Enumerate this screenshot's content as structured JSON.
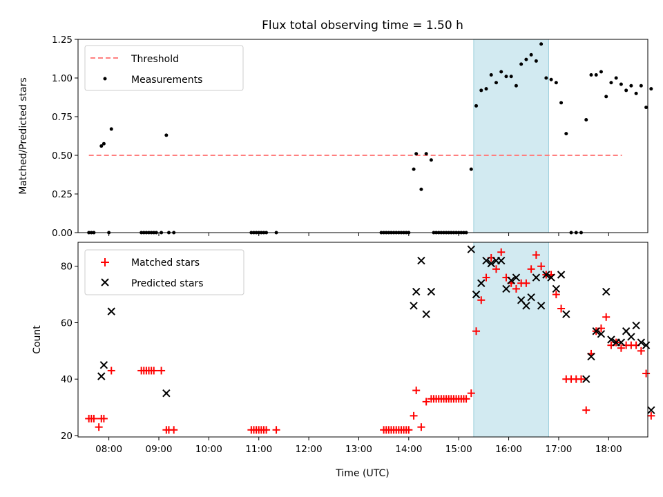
{
  "chart_data": [
    {
      "type": "scatter",
      "title": "Flux total observing time = 1.50 h",
      "xlabel": "",
      "ylabel": "Matched/Predicted stars",
      "xlim": [
        "07:23",
        "18:47"
      ],
      "ylim": [
        0,
        1.25
      ],
      "yticks": [
        0,
        0.25,
        0.5,
        0.75,
        1.0,
        1.25
      ],
      "ytick_labels": [
        "0.00",
        "0.25",
        "0.50",
        "0.75",
        "1.00",
        "1.25"
      ],
      "threshold": {
        "name": "Threshold",
        "y": 0.5,
        "x_range": [
          "07:36",
          "18:16"
        ],
        "color": "#ff7f7f"
      },
      "highlight_span": [
        "15:18",
        "16:48"
      ],
      "legend": {
        "position": "top-left",
        "entries": [
          "Threshold",
          "Measurements"
        ]
      },
      "series": [
        {
          "name": "Measurements",
          "color": "#000000",
          "marker": "dot",
          "points": [
            [
              "07:36",
              0
            ],
            [
              "07:39",
              0
            ],
            [
              "07:42",
              0
            ],
            [
              "07:51",
              0.56
            ],
            [
              "07:54",
              0.575
            ],
            [
              "08:00",
              0
            ],
            [
              "08:03",
              0.67
            ],
            [
              "08:39",
              0
            ],
            [
              "08:42",
              0
            ],
            [
              "08:45",
              0
            ],
            [
              "08:48",
              0
            ],
            [
              "08:51",
              0
            ],
            [
              "08:54",
              0
            ],
            [
              "08:57",
              0
            ],
            [
              "09:03",
              0
            ],
            [
              "09:09",
              0.63
            ],
            [
              "09:12",
              0
            ],
            [
              "09:18",
              0
            ],
            [
              "10:51",
              0
            ],
            [
              "10:54",
              0
            ],
            [
              "10:57",
              0
            ],
            [
              "11:00",
              0
            ],
            [
              "11:03",
              0
            ],
            [
              "11:06",
              0
            ],
            [
              "11:09",
              0
            ],
            [
              "11:21",
              0
            ],
            [
              "13:27",
              0
            ],
            [
              "13:30",
              0
            ],
            [
              "13:33",
              0
            ],
            [
              "13:36",
              0
            ],
            [
              "13:39",
              0
            ],
            [
              "13:42",
              0
            ],
            [
              "13:45",
              0
            ],
            [
              "13:48",
              0
            ],
            [
              "13:51",
              0
            ],
            [
              "13:54",
              0
            ],
            [
              "13:57",
              0
            ],
            [
              "14:00",
              0
            ],
            [
              "14:06",
              0.41
            ],
            [
              "14:09",
              0.51
            ],
            [
              "14:15",
              0.28
            ],
            [
              "14:21",
              0.51
            ],
            [
              "14:27",
              0.47
            ],
            [
              "14:30",
              0
            ],
            [
              "14:33",
              0
            ],
            [
              "14:36",
              0
            ],
            [
              "14:39",
              0
            ],
            [
              "14:42",
              0
            ],
            [
              "14:45",
              0
            ],
            [
              "14:48",
              0
            ],
            [
              "14:51",
              0
            ],
            [
              "14:54",
              0
            ],
            [
              "14:57",
              0
            ],
            [
              "15:00",
              0
            ],
            [
              "15:03",
              0
            ],
            [
              "15:06",
              0
            ],
            [
              "15:09",
              0
            ],
            [
              "15:15",
              0.41
            ],
            [
              "15:21",
              0.82
            ],
            [
              "15:27",
              0.92
            ],
            [
              "15:33",
              0.93
            ],
            [
              "15:39",
              1.02
            ],
            [
              "15:45",
              0.97
            ],
            [
              "15:51",
              1.04
            ],
            [
              "15:57",
              1.01
            ],
            [
              "16:03",
              1.01
            ],
            [
              "16:09",
              0.95
            ],
            [
              "16:15",
              1.09
            ],
            [
              "16:21",
              1.12
            ],
            [
              "16:27",
              1.15
            ],
            [
              "16:33",
              1.11
            ],
            [
              "16:39",
              1.22
            ],
            [
              "16:45",
              1.0
            ],
            [
              "16:51",
              0.99
            ],
            [
              "16:57",
              0.97
            ],
            [
              "17:03",
              0.84
            ],
            [
              "17:09",
              0.64
            ],
            [
              "17:15",
              0
            ],
            [
              "17:21",
              0
            ],
            [
              "17:27",
              0
            ],
            [
              "17:33",
              0.73
            ],
            [
              "17:39",
              1.02
            ],
            [
              "17:45",
              1.02
            ],
            [
              "17:51",
              1.04
            ],
            [
              "17:57",
              0.88
            ],
            [
              "18:03",
              0.97
            ],
            [
              "18:09",
              1.0
            ],
            [
              "18:15",
              0.96
            ],
            [
              "18:21",
              0.92
            ],
            [
              "18:27",
              0.95
            ],
            [
              "18:33",
              0.9
            ],
            [
              "18:39",
              0.95
            ],
            [
              "18:45",
              0.81
            ],
            [
              "18:51",
              0.93
            ]
          ]
        }
      ]
    },
    {
      "type": "scatter",
      "title": "",
      "xlabel": "Time (UTC)",
      "ylabel": "Count",
      "xlim": [
        "07:23",
        "18:47"
      ],
      "ylim": [
        19.5,
        88.5
      ],
      "yticks": [
        20,
        40,
        60,
        80
      ],
      "ytick_labels": [
        "20",
        "40",
        "60",
        "80"
      ],
      "xticks": [
        "08:00",
        "09:00",
        "10:00",
        "11:00",
        "12:00",
        "13:00",
        "14:00",
        "15:00",
        "16:00",
        "17:00",
        "18:00"
      ],
      "highlight_span": [
        "15:18",
        "16:48"
      ],
      "legend": {
        "position": "top-left",
        "entries": [
          "Matched stars",
          "Predicted stars"
        ]
      },
      "series": [
        {
          "name": "Matched stars",
          "color": "#ff0000",
          "marker": "plus",
          "points": [
            [
              "07:36",
              26
            ],
            [
              "07:39",
              26
            ],
            [
              "07:42",
              26
            ],
            [
              "07:48",
              23
            ],
            [
              "07:51",
              26
            ],
            [
              "07:54",
              26
            ],
            [
              "08:03",
              43
            ],
            [
              "08:39",
              43
            ],
            [
              "08:42",
              43
            ],
            [
              "08:45",
              43
            ],
            [
              "08:48",
              43
            ],
            [
              "08:51",
              43
            ],
            [
              "08:54",
              43
            ],
            [
              "09:03",
              43
            ],
            [
              "09:09",
              22
            ],
            [
              "09:12",
              22
            ],
            [
              "09:18",
              22
            ],
            [
              "10:51",
              22
            ],
            [
              "10:54",
              22
            ],
            [
              "10:57",
              22
            ],
            [
              "11:00",
              22
            ],
            [
              "11:03",
              22
            ],
            [
              "11:06",
              22
            ],
            [
              "11:09",
              22
            ],
            [
              "11:21",
              22
            ],
            [
              "13:30",
              22
            ],
            [
              "13:33",
              22
            ],
            [
              "13:36",
              22
            ],
            [
              "13:39",
              22
            ],
            [
              "13:42",
              22
            ],
            [
              "13:45",
              22
            ],
            [
              "13:48",
              22
            ],
            [
              "13:51",
              22
            ],
            [
              "13:54",
              22
            ],
            [
              "13:57",
              22
            ],
            [
              "14:00",
              22
            ],
            [
              "14:06",
              27
            ],
            [
              "14:09",
              36
            ],
            [
              "14:15",
              23
            ],
            [
              "14:21",
              32
            ],
            [
              "14:27",
              33
            ],
            [
              "14:30",
              33
            ],
            [
              "14:33",
              33
            ],
            [
              "14:36",
              33
            ],
            [
              "14:39",
              33
            ],
            [
              "14:42",
              33
            ],
            [
              "14:45",
              33
            ],
            [
              "14:48",
              33
            ],
            [
              "14:51",
              33
            ],
            [
              "14:54",
              33
            ],
            [
              "14:57",
              33
            ],
            [
              "15:00",
              33
            ],
            [
              "15:03",
              33
            ],
            [
              "15:06",
              33
            ],
            [
              "15:09",
              33
            ],
            [
              "15:15",
              35
            ],
            [
              "15:21",
              57
            ],
            [
              "15:27",
              68
            ],
            [
              "15:33",
              76
            ],
            [
              "15:39",
              83
            ],
            [
              "15:45",
              79
            ],
            [
              "15:51",
              85
            ],
            [
              "15:57",
              76
            ],
            [
              "16:03",
              74
            ],
            [
              "16:09",
              72
            ],
            [
              "16:15",
              74
            ],
            [
              "16:21",
              74
            ],
            [
              "16:27",
              79
            ],
            [
              "16:33",
              84
            ],
            [
              "16:39",
              80
            ],
            [
              "16:45",
              77
            ],
            [
              "16:51",
              77
            ],
            [
              "16:57",
              70
            ],
            [
              "17:03",
              65
            ],
            [
              "17:09",
              40
            ],
            [
              "17:15",
              40
            ],
            [
              "17:21",
              40
            ],
            [
              "17:27",
              40
            ],
            [
              "17:33",
              29
            ],
            [
              "17:39",
              49
            ],
            [
              "17:45",
              57
            ],
            [
              "17:51",
              58
            ],
            [
              "17:57",
              62
            ],
            [
              "18:03",
              52
            ],
            [
              "18:09",
              53
            ],
            [
              "18:15",
              51
            ],
            [
              "18:21",
              52
            ],
            [
              "18:27",
              52
            ],
            [
              "18:33",
              52
            ],
            [
              "18:39",
              50
            ],
            [
              "18:45",
              42
            ],
            [
              "18:51",
              27
            ]
          ]
        },
        {
          "name": "Predicted stars",
          "color": "#000000",
          "marker": "x",
          "points": [
            [
              "07:51",
              41
            ],
            [
              "07:54",
              45
            ],
            [
              "08:03",
              64
            ],
            [
              "09:09",
              35
            ],
            [
              "14:06",
              66
            ],
            [
              "14:09",
              71
            ],
            [
              "14:15",
              82
            ],
            [
              "14:21",
              63
            ],
            [
              "14:27",
              71
            ],
            [
              "15:15",
              86
            ],
            [
              "15:21",
              70
            ],
            [
              "15:27",
              74
            ],
            [
              "15:33",
              82
            ],
            [
              "15:39",
              81
            ],
            [
              "15:45",
              82
            ],
            [
              "15:51",
              82
            ],
            [
              "15:57",
              72
            ],
            [
              "16:03",
              75
            ],
            [
              "16:09",
              76
            ],
            [
              "16:15",
              68
            ],
            [
              "16:21",
              66
            ],
            [
              "16:27",
              69
            ],
            [
              "16:33",
              76
            ],
            [
              "16:39",
              66
            ],
            [
              "16:45",
              77
            ],
            [
              "16:51",
              76
            ],
            [
              "16:57",
              72
            ],
            [
              "17:03",
              77
            ],
            [
              "17:09",
              63
            ],
            [
              "17:33",
              40
            ],
            [
              "17:39",
              48
            ],
            [
              "17:45",
              57
            ],
            [
              "17:51",
              56
            ],
            [
              "17:57",
              71
            ],
            [
              "18:03",
              54
            ],
            [
              "18:09",
              53
            ],
            [
              "18:15",
              53
            ],
            [
              "18:21",
              57
            ],
            [
              "18:27",
              55
            ],
            [
              "18:33",
              59
            ],
            [
              "18:39",
              53
            ],
            [
              "18:45",
              52
            ],
            [
              "18:51",
              29
            ]
          ]
        }
      ]
    }
  ]
}
